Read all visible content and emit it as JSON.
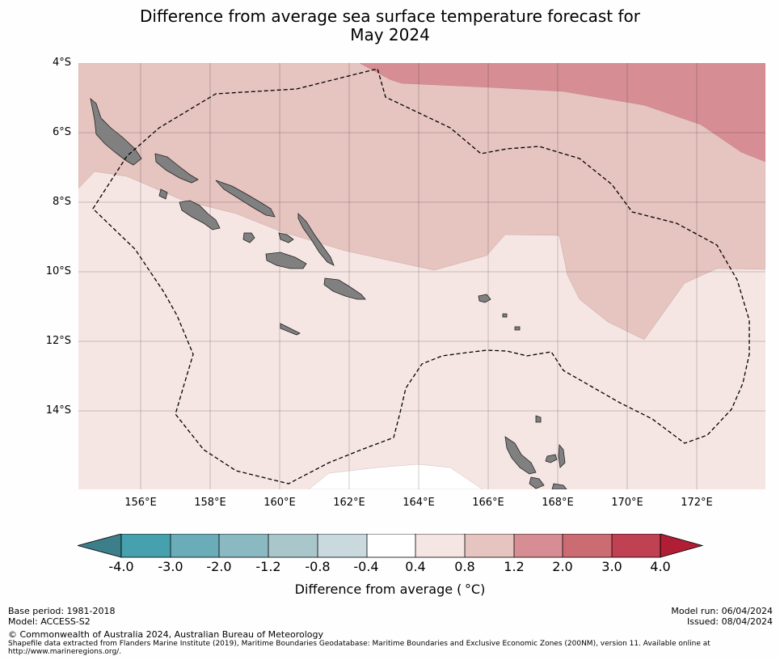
{
  "title": {
    "line1": "Difference from average sea surface temperature forecast for",
    "line2": "May 2024"
  },
  "axes": {
    "lat_labels": [
      "4°S",
      "6°S",
      "8°S",
      "10°S",
      "12°S",
      "14°S"
    ],
    "lon_labels": [
      "156°E",
      "158°E",
      "160°E",
      "162°E",
      "164°E",
      "166°E",
      "168°E",
      "170°E",
      "172°E"
    ]
  },
  "colorbar": {
    "ticks": [
      "-4.0",
      "-3.0",
      "-2.0",
      "-1.2",
      "-0.8",
      "-0.4",
      "0.4",
      "0.8",
      "1.2",
      "2.0",
      "3.0",
      "4.0"
    ],
    "colors": [
      "#46a0ae",
      "#6aadb9",
      "#8ab9c1",
      "#a9c6cb",
      "#c9d9dd",
      "#ffffff",
      "#f5e6e4",
      "#e6c4c0",
      "#d68e94",
      "#cb6b72",
      "#c04152"
    ],
    "under_color": "#3c7f8a",
    "over_color": "#b01d34",
    "label": "Difference from average (",
    "label_symbol": "°C)"
  },
  "map_colors": {
    "band_0_4_0_8": "#f5e6e4",
    "band_0_8_1_2": "#e6c4c0",
    "band_1_2_2_0": "#d68e94",
    "band_neg0_4_0_4": "#ffffff",
    "land": "#808080"
  },
  "footer": {
    "base_period": "Base period: 1981-2018",
    "model": "Model: ACCESS-S2",
    "model_run": "Model run: 06/04/2024",
    "issued": "Issued: 08/04/2024",
    "copyright": "© Commonwealth of Australia 2024, Australian Bureau of Meteorology",
    "shapefile_line1": "Shapefile data extracted from Flanders Marine Institute (2019), Maritime Boundaries Geodatabase: Maritime Boundaries and Exclusive Economic Zones (200NM), version 11. Available online at",
    "shapefile_line2": "http://www.marineregions.org/."
  }
}
